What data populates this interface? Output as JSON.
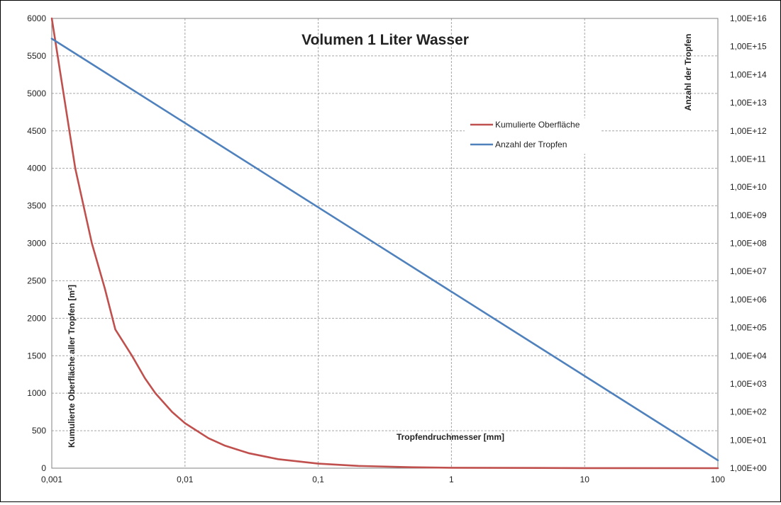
{
  "chart_data": {
    "type": "line",
    "title": "Volumen 1 Liter Wasser",
    "xlabel": "Tropfendruchmesser [mm]",
    "ylabel": "Kumulierte Oberfläche aller Tropfen [m²]",
    "y2label": "Anzahl der Tropfen",
    "xscale": "log",
    "xlim": [
      0.001,
      100
    ],
    "ylim": [
      0,
      6000
    ],
    "y2scale": "log",
    "y2lim": [
      1,
      1e+16
    ],
    "x_ticks": [
      "0,001",
      "0,01",
      "0,1",
      "1",
      "10",
      "100"
    ],
    "y_ticks": [
      "0",
      "500",
      "1000",
      "1500",
      "2000",
      "2500",
      "3000",
      "3500",
      "4000",
      "4500",
      "5000",
      "5500",
      "6000"
    ],
    "y2_ticks": [
      "1,00E+00",
      "1,00E+01",
      "1,00E+02",
      "1,00E+03",
      "1,00E+04",
      "1,00E+05",
      "1,00E+06",
      "1,00E+07",
      "1,00E+08",
      "1,00E+09",
      "1,00E+10",
      "1,00E+11",
      "1,00E+12",
      "1,00E+13",
      "1,00E+14",
      "1,00E+15",
      "1,00E+16"
    ],
    "grid": true,
    "legend_position": "upper-right",
    "series": [
      {
        "name": "Kumulierte Oberfläche",
        "axis": "left",
        "color": "#c0504d",
        "x": [
          0.001,
          0.0015,
          0.002,
          0.0025,
          0.003,
          0.004,
          0.005,
          0.006,
          0.008,
          0.01,
          0.015,
          0.02,
          0.03,
          0.05,
          0.1,
          0.2,
          0.5,
          1,
          10,
          100
        ],
        "y": [
          6000,
          4000,
          3000,
          2400,
          1850,
          1500,
          1200,
          1000,
          750,
          600,
          400,
          300,
          200,
          120,
          60,
          30,
          12,
          6,
          0.6,
          0.06
        ]
      },
      {
        "name": "Anzahl der Tropfen",
        "axis": "right",
        "color": "#4f81bd",
        "x": [
          0.001,
          100
        ],
        "y": [
          1900000000000000.0,
          1.9
        ]
      }
    ]
  }
}
